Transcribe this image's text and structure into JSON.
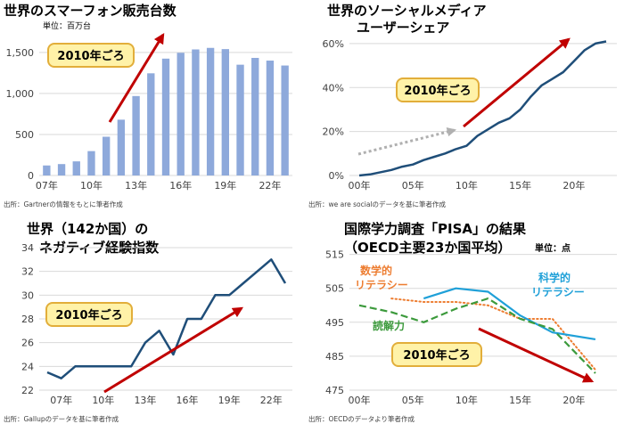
{
  "colors": {
    "bar": "#8ea9db",
    "line": "#1f4e79",
    "trend_arrow": "#c00000",
    "dotted_arrow": "#b0b0b0",
    "badge_fill": "#fff2a8",
    "badge_stroke": "#e2ae3a",
    "grid": "#d9d9d9",
    "axis_text": "#404040",
    "pisa_math": "#ed7d31",
    "pisa_science": "#1fa0d8",
    "pisa_reading": "#3c9a3c"
  },
  "chart_data": [
    {
      "id": "smartphones",
      "type": "bar",
      "title": "世界のスマーフォン販売台数",
      "unit_label": "単位：百万台",
      "badge": "2010年ごろ",
      "source": "出所：Gartnerの情報をもとに筆者作成",
      "x": [
        2007,
        2008,
        2009,
        2010,
        2011,
        2012,
        2013,
        2014,
        2015,
        2016,
        2017,
        2018,
        2019,
        2020,
        2021,
        2022,
        2023
      ],
      "values": [
        122,
        139,
        172,
        297,
        472,
        680,
        968,
        1245,
        1424,
        1495,
        1536,
        1555,
        1540,
        1350,
        1433,
        1400,
        1340
      ],
      "xticks": [
        {
          "x": 2007,
          "label": "07年"
        },
        {
          "x": 2010,
          "label": "10年"
        },
        {
          "x": 2013,
          "label": "13年"
        },
        {
          "x": 2016,
          "label": "16年"
        },
        {
          "x": 2019,
          "label": "19年"
        },
        {
          "x": 2022,
          "label": "22年"
        }
      ],
      "yticks": [
        {
          "v": 0,
          "label": "0"
        },
        {
          "v": 500,
          "label": "500"
        },
        {
          "v": 1000,
          "label": "1,000"
        },
        {
          "v": 1500,
          "label": "1,500"
        }
      ],
      "ylim": [
        0,
        1650
      ],
      "grid": true
    },
    {
      "id": "social_media",
      "type": "line",
      "title_lines": [
        "世界のソーシャルメディア",
        "ユーザーシェア"
      ],
      "badge": "2010年ごろ",
      "source": "出所：we are socialのデータを基に筆者作成",
      "x": [
        2000,
        2001,
        2002,
        2003,
        2004,
        2005,
        2006,
        2007,
        2008,
        2009,
        2010,
        2011,
        2012,
        2013,
        2014,
        2015,
        2016,
        2017,
        2018,
        2019,
        2020,
        2021,
        2022,
        2023
      ],
      "values": [
        0,
        0.5,
        1.5,
        2.5,
        4,
        5,
        7,
        8.5,
        10,
        12,
        13.5,
        18,
        21,
        24,
        26,
        30,
        36,
        41,
        44,
        47,
        52,
        57,
        60,
        61
      ],
      "xticks": [
        {
          "x": 2000,
          "label": "00年"
        },
        {
          "x": 2005,
          "label": "05年"
        },
        {
          "x": 2010,
          "label": "10年"
        },
        {
          "x": 2015,
          "label": "15年"
        },
        {
          "x": 2020,
          "label": "20年"
        }
      ],
      "yticks": [
        {
          "v": 0,
          "label": "0%"
        },
        {
          "v": 20,
          "label": "20%"
        },
        {
          "v": 40,
          "label": "40%"
        },
        {
          "v": 60,
          "label": "60%"
        }
      ],
      "ylim": [
        0,
        62
      ],
      "grid": true
    },
    {
      "id": "negative_experience",
      "type": "line",
      "title_lines": [
        "世界（142か国）の",
        "ネガティブ経験指数"
      ],
      "badge": "2010年ごろ",
      "source": "出所：Gallupのデータを基に筆者作成",
      "x": [
        2006,
        2007,
        2008,
        2009,
        2010,
        2011,
        2012,
        2013,
        2014,
        2015,
        2016,
        2017,
        2018,
        2019,
        2020,
        2021,
        2022,
        2023
      ],
      "values": [
        23.5,
        23,
        24,
        24,
        24,
        24,
        24,
        26,
        27,
        25,
        28,
        28,
        30,
        30,
        31,
        32,
        33,
        31
      ],
      "xticks": [
        {
          "x": 2007,
          "label": "07年"
        },
        {
          "x": 2010,
          "label": "10年"
        },
        {
          "x": 2013,
          "label": "13年"
        },
        {
          "x": 2016,
          "label": "16年"
        },
        {
          "x": 2019,
          "label": "19年"
        },
        {
          "x": 2022,
          "label": "22年"
        }
      ],
      "yticks": [
        {
          "v": 22,
          "label": "22"
        },
        {
          "v": 24,
          "label": "24"
        },
        {
          "v": 26,
          "label": "26"
        },
        {
          "v": 28,
          "label": "28"
        },
        {
          "v": 30,
          "label": "30"
        },
        {
          "v": 32,
          "label": "32"
        },
        {
          "v": 34,
          "label": "34"
        }
      ],
      "ylim": [
        22,
        34
      ],
      "grid": true
    },
    {
      "id": "pisa",
      "type": "line",
      "title_lines": [
        "国際学力調査「PISA」の結果",
        "（OECD主要23か国平均）"
      ],
      "unit_label": "単位：点",
      "badge": "2010年ごろ",
      "source": "出所：OECDのデータより筆者作成",
      "xticks": [
        {
          "x": 2000,
          "label": "00年"
        },
        {
          "x": 2005,
          "label": "05年"
        },
        {
          "x": 2010,
          "label": "10年"
        },
        {
          "x": 2015,
          "label": "15年"
        },
        {
          "x": 2020,
          "label": "20年"
        }
      ],
      "yticks": [
        {
          "v": 475,
          "label": "475"
        },
        {
          "v": 485,
          "label": "485"
        },
        {
          "v": 495,
          "label": "495"
        },
        {
          "v": 505,
          "label": "505"
        },
        {
          "v": 515,
          "label": "515"
        }
      ],
      "ylim": [
        475,
        517
      ],
      "grid": true,
      "series": [
        {
          "name": "数学的リテラシー",
          "label_lines": [
            "数学的",
            "リテラシー"
          ],
          "style": "dotted",
          "x": [
            2003,
            2006,
            2009,
            2012,
            2015,
            2018,
            2022
          ],
          "values": [
            502,
            501,
            501,
            500,
            496,
            496,
            481
          ]
        },
        {
          "name": "科学的リテラシー",
          "label_lines": [
            "科学的",
            "リテラシー"
          ],
          "style": "solid",
          "x": [
            2006,
            2009,
            2012,
            2015,
            2018,
            2022
          ],
          "values": [
            502,
            505,
            504,
            497,
            492,
            490
          ]
        },
        {
          "name": "読解力",
          "label_lines": [
            "読解力"
          ],
          "style": "dashed",
          "x": [
            2000,
            2003,
            2006,
            2009,
            2012,
            2015,
            2018,
            2022
          ],
          "values": [
            500,
            498,
            495,
            499,
            502,
            496,
            493,
            480
          ]
        }
      ]
    }
  ]
}
